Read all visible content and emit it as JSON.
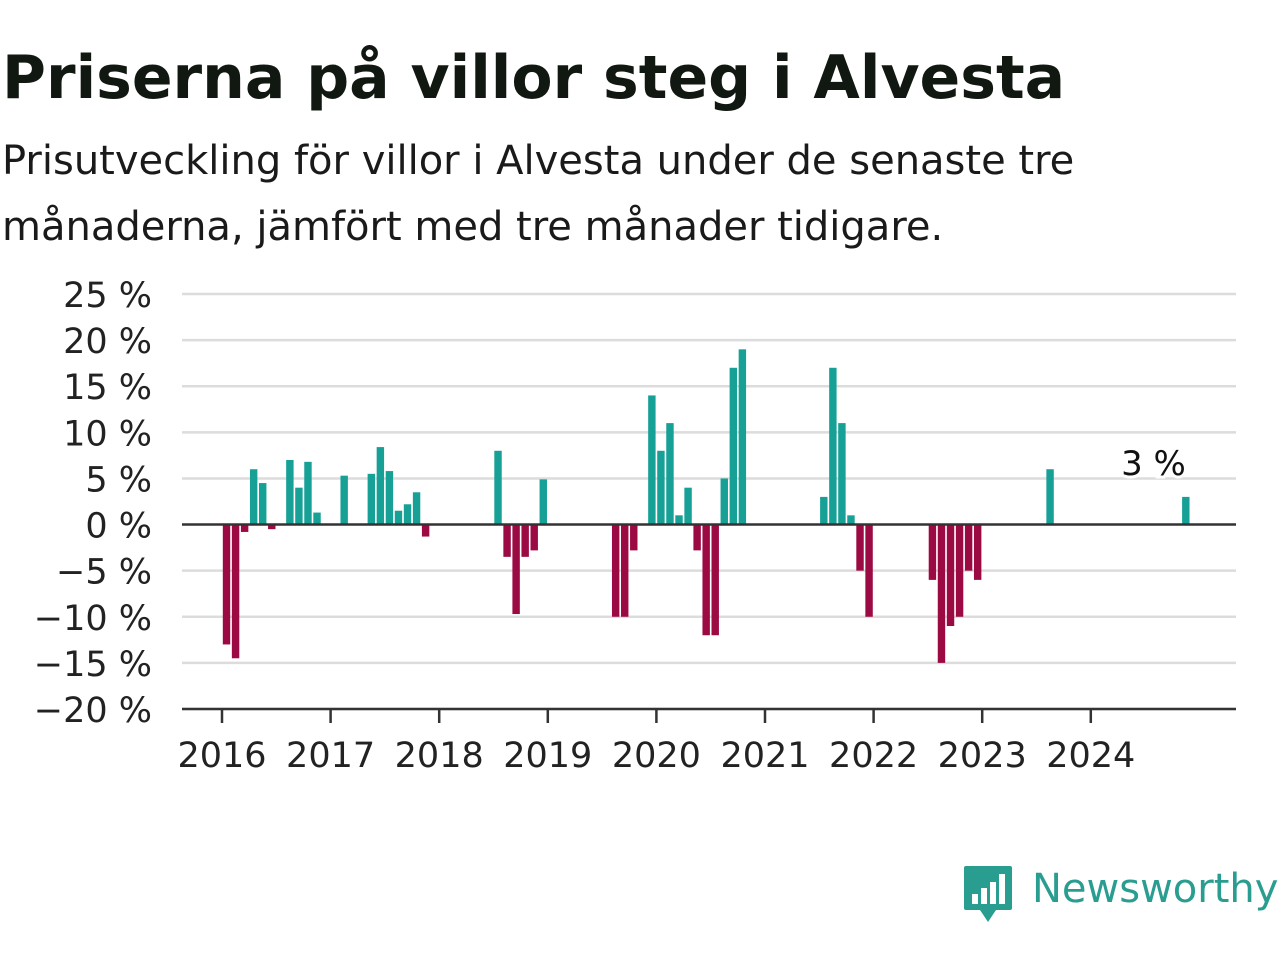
{
  "title": "Priserna på villor steg i Alvesta",
  "subtitle": "Prisutveckling för villor i Alvesta under de senaste tre månaderna, jämfört med tre månader tidigare.",
  "brand": {
    "name": "Newsworthy",
    "color": "#2a9d91",
    "icon": "newsworthy-logo-icon"
  },
  "chart_data": {
    "type": "bar",
    "y_unit": "%",
    "ylim": [
      -20,
      25
    ],
    "y_ticks": [
      {
        "value": 25,
        "label": "25 %"
      },
      {
        "value": 20,
        "label": "20 %"
      },
      {
        "value": 15,
        "label": "15 %"
      },
      {
        "value": 10,
        "label": "10 %"
      },
      {
        "value": 5,
        "label": "5 %"
      },
      {
        "value": 0,
        "label": "0 %"
      },
      {
        "value": -5,
        "label": "−5 %"
      },
      {
        "value": -10,
        "label": "−10 %"
      },
      {
        "value": -15,
        "label": "−15 %"
      },
      {
        "value": -20,
        "label": "−20 %"
      }
    ],
    "x_ticks": [
      "2016",
      "2017",
      "2018",
      "2019",
      "2020",
      "2021",
      "2022",
      "2023",
      "2024"
    ],
    "grid": true,
    "colors": {
      "positive": "#17a096",
      "negative": "#9b0a42"
    },
    "annotation": {
      "date": "2024-11",
      "label": "3 %"
    },
    "bars": [
      {
        "date": "2016-01",
        "value": -13
      },
      {
        "date": "2016-02",
        "value": -14.5
      },
      {
        "date": "2016-03",
        "value": -0.8
      },
      {
        "date": "2016-04",
        "value": 6
      },
      {
        "date": "2016-05",
        "value": 4.5
      },
      {
        "date": "2016-06",
        "value": -0.5
      },
      {
        "date": "2016-08",
        "value": 7
      },
      {
        "date": "2016-09",
        "value": 4
      },
      {
        "date": "2016-10",
        "value": 6.8
      },
      {
        "date": "2016-11",
        "value": 1.3
      },
      {
        "date": "2017-02",
        "value": 5.3
      },
      {
        "date": "2017-05",
        "value": 5.5
      },
      {
        "date": "2017-06",
        "value": 8.4
      },
      {
        "date": "2017-07",
        "value": 5.8
      },
      {
        "date": "2017-08",
        "value": 1.5
      },
      {
        "date": "2017-09",
        "value": 2.2
      },
      {
        "date": "2017-10",
        "value": 3.5
      },
      {
        "date": "2017-11",
        "value": -1.3
      },
      {
        "date": "2018-07",
        "value": 8
      },
      {
        "date": "2018-08",
        "value": -3.5
      },
      {
        "date": "2018-09",
        "value": -9.7
      },
      {
        "date": "2018-10",
        "value": -3.5
      },
      {
        "date": "2018-11",
        "value": -2.8
      },
      {
        "date": "2018-12",
        "value": 4.9
      },
      {
        "date": "2019-08",
        "value": -10
      },
      {
        "date": "2019-09",
        "value": -10
      },
      {
        "date": "2019-10",
        "value": -2.8
      },
      {
        "date": "2019-12",
        "value": 14
      },
      {
        "date": "2020-01",
        "value": 8
      },
      {
        "date": "2020-02",
        "value": 11
      },
      {
        "date": "2020-03",
        "value": 1
      },
      {
        "date": "2020-04",
        "value": 4
      },
      {
        "date": "2020-05",
        "value": -2.8
      },
      {
        "date": "2020-06",
        "value": -12
      },
      {
        "date": "2020-07",
        "value": -12
      },
      {
        "date": "2020-08",
        "value": 5
      },
      {
        "date": "2020-09",
        "value": 17
      },
      {
        "date": "2020-10",
        "value": 19
      },
      {
        "date": "2021-07",
        "value": 3
      },
      {
        "date": "2021-08",
        "value": 17
      },
      {
        "date": "2021-09",
        "value": 11
      },
      {
        "date": "2021-10",
        "value": 1
      },
      {
        "date": "2021-11",
        "value": -5
      },
      {
        "date": "2021-12",
        "value": -10
      },
      {
        "date": "2022-07",
        "value": -6
      },
      {
        "date": "2022-08",
        "value": -15
      },
      {
        "date": "2022-09",
        "value": -11
      },
      {
        "date": "2022-10",
        "value": -10
      },
      {
        "date": "2022-11",
        "value": -5
      },
      {
        "date": "2022-12",
        "value": -6
      },
      {
        "date": "2023-08",
        "value": 6
      },
      {
        "date": "2024-11",
        "value": 3
      }
    ]
  }
}
